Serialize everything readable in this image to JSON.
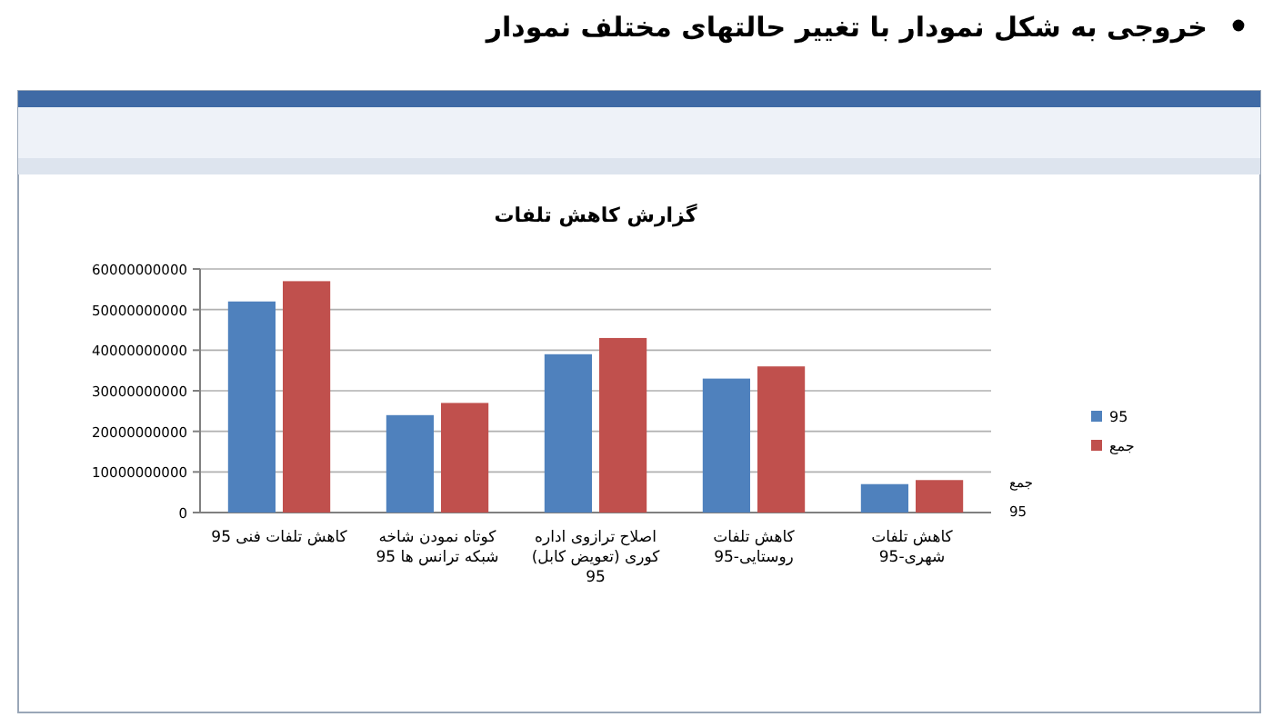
{
  "chart_data": {
    "type": "bar",
    "title": "گزارش کاهش تلفات",
    "annotations": [
      "خروجی به شکل نمودار با تغییر حالتهای مختلف نمودار"
    ],
    "categories": [
      "کاهش تلفات فنی 95",
      "کوتاه نمودن شاخه شبکه ترانس ها 95",
      "اصلاح ترازوی اداره کوری (تعویض کابل) 95",
      "کاهش تلفات روستایی-95",
      "کاهش تلفات شهری-95"
    ],
    "series": [
      {
        "name": "95",
        "color": "#4f81bd",
        "values": [
          52000000000,
          24000000000,
          39000000000,
          33000000000,
          7000000000
        ]
      },
      {
        "name": "جمع",
        "color": "#c0504d",
        "values": [
          57000000000,
          27000000000,
          43000000000,
          36000000000,
          8000000000
        ]
      }
    ],
    "ylim": [
      0,
      60000000000
    ],
    "yticks": [
      0,
      10000000000,
      20000000000,
      30000000000,
      40000000000,
      50000000000,
      60000000000
    ],
    "grid": "y",
    "legend": "right"
  }
}
